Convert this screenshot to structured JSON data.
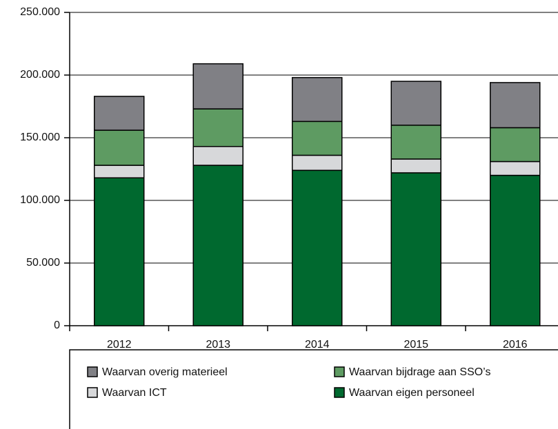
{
  "chart_data": {
    "type": "stacked_bar",
    "categories": [
      "2012",
      "2013",
      "2014",
      "2015",
      "2016"
    ],
    "series": [
      {
        "name": "Waarvan eigen personeel",
        "color": "#00692f",
        "values": [
          118000,
          128000,
          124000,
          122000,
          120000
        ]
      },
      {
        "name": "Waarvan ICT",
        "color": "#d7d8da",
        "values": [
          10000,
          15000,
          12000,
          11000,
          11000
        ]
      },
      {
        "name": "Waarvan bijdrage aan SSO’s",
        "color": "#5e9b62",
        "values": [
          28000,
          30000,
          27000,
          27000,
          27000
        ]
      },
      {
        "name": "Waarvan overig materieel",
        "color": "#808085",
        "values": [
          27000,
          36000,
          35000,
          35000,
          36000
        ]
      }
    ],
    "ylim": [
      0,
      250000
    ],
    "yticks": [
      0,
      {
        "value": 50000,
        "label": "50.000"
      },
      {
        "value": 100000,
        "label": "100.000"
      },
      {
        "value": 150000,
        "label": "150.000"
      },
      {
        "value": 200000,
        "label": "200.000"
      },
      {
        "value": 250000,
        "label": "250.000"
      }
    ],
    "grid": true
  }
}
